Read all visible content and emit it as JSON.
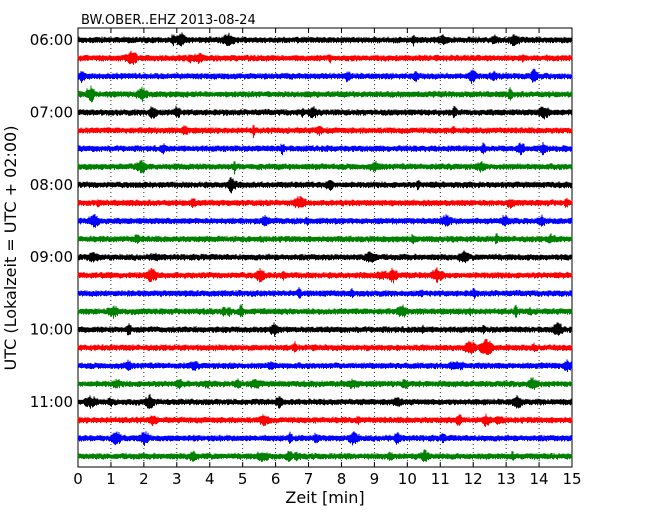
{
  "chart_data": {
    "type": "line",
    "title": "BW.OBER..EHZ 2013-08-24",
    "xlabel": "Zeit  [min]",
    "ylabel": "UTC (Lokalzeit = UTC + 02:00)",
    "xlim": [
      0,
      15
    ],
    "x_ticks": [
      "0",
      "1",
      "2",
      "3",
      "4",
      "5",
      "6",
      "7",
      "8",
      "9",
      "10",
      "11",
      "12",
      "13",
      "14",
      "15"
    ],
    "y_ticks": [
      "06:00",
      "07:00",
      "08:00",
      "09:00",
      "10:00",
      "11:00"
    ],
    "grid": true,
    "series_colors": [
      "#000000",
      "#ff0000",
      "#0000ff",
      "#008000"
    ],
    "trace_count": 24,
    "trace_start_hour": 6,
    "trace_interval_min": 15
  }
}
